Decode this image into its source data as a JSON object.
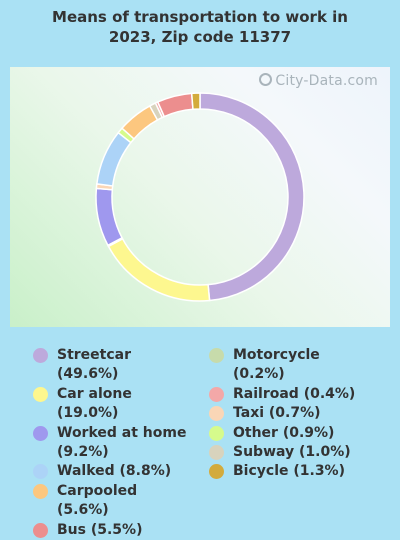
{
  "title_line1": "Means of transportation to work in",
  "title_line2": "2023, Zip code 11377",
  "watermark": "City-Data.com",
  "chart_data": {
    "type": "pie",
    "donut": true,
    "title": "Means of transportation to work in 2023, Zip code 11377",
    "series": [
      {
        "name": "Streetcar",
        "value": 49.6,
        "color": "#bda9dc"
      },
      {
        "name": "Car alone",
        "value": 19.0,
        "color": "#fdf78f"
      },
      {
        "name": "Worked at home",
        "value": 9.2,
        "color": "#9f98ee"
      },
      {
        "name": "Walked",
        "value": 8.8,
        "color": "#acd3f7"
      },
      {
        "name": "Carpooled",
        "value": 5.6,
        "color": "#fcc77f"
      },
      {
        "name": "Bus",
        "value": 5.5,
        "color": "#ec8e8e"
      },
      {
        "name": "Motorcycle",
        "value": 0.2,
        "color": "#c7dbab"
      },
      {
        "name": "Railroad",
        "value": 0.4,
        "color": "#f3a8a8"
      },
      {
        "name": "Taxi",
        "value": 0.7,
        "color": "#fad6b6"
      },
      {
        "name": "Other",
        "value": 0.9,
        "color": "#d6fb8c"
      },
      {
        "name": "Subway",
        "value": 1.0,
        "color": "#d8d3bd"
      },
      {
        "name": "Bicycle",
        "value": 1.3,
        "color": "#d3ab3c"
      }
    ],
    "slice_order": [
      "Streetcar",
      "Car alone",
      "Motorcycle",
      "Worked at home",
      "Taxi",
      "Walked",
      "Other",
      "Carpooled",
      "Subway",
      "Railroad",
      "Bus",
      "Bicycle"
    ],
    "legend_position": "bottom"
  },
  "legend": {
    "left": [
      {
        "text": "Streetcar (49.6%)",
        "color": "#bda9dc"
      },
      {
        "text": "Car alone (19.0%)",
        "color": "#fdf78f"
      },
      {
        "text": "Worked at home (9.2%)",
        "color": "#9f98ee"
      },
      {
        "text": "Walked (8.8%)",
        "color": "#acd3f7"
      },
      {
        "text": "Carpooled (5.6%)",
        "color": "#fcc77f"
      },
      {
        "text": "Bus (5.5%)",
        "color": "#ec8e8e"
      }
    ],
    "right": [
      {
        "text": "Motorcycle (0.2%)",
        "color": "#c7dbab"
      },
      {
        "text": "Railroad (0.4%)",
        "color": "#f3a8a8"
      },
      {
        "text": "Taxi (0.7%)",
        "color": "#fad6b6"
      },
      {
        "text": "Other (0.9%)",
        "color": "#d6fb8c"
      },
      {
        "text": "Subway (1.0%)",
        "color": "#d8d3bd"
      },
      {
        "text": "Bicycle (1.3%)",
        "color": "#d3ab3c"
      }
    ]
  }
}
